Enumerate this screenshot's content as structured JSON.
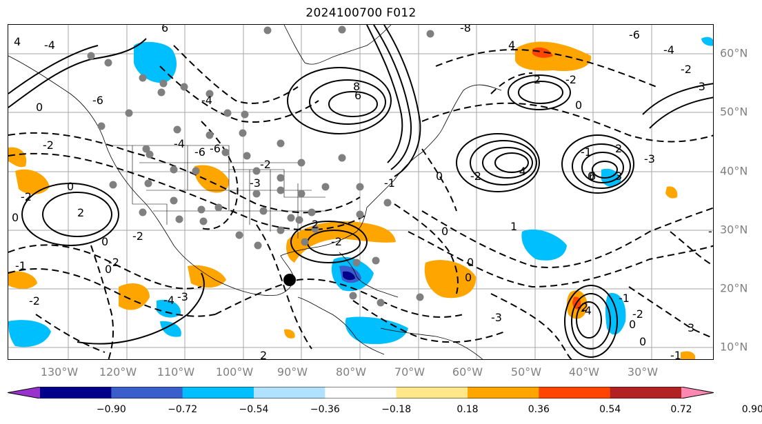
{
  "title": "2024100700 F012",
  "longitude_labels": [
    "130°W",
    "120°W",
    "110°W",
    "100°W",
    "90°W",
    "80°W",
    "70°W",
    "60°W",
    "50°W",
    "40°W",
    "30°W"
  ],
  "latitude_labels": [
    "60°N",
    "50°N",
    "40°N",
    "30°N",
    "20°N",
    "10°N"
  ],
  "colorbar": {
    "tick_labels": [
      "−0.90",
      "−0.72",
      "−0.54",
      "−0.36",
      "−0.18",
      "0.18",
      "0.36",
      "0.54",
      "0.72",
      "0.90"
    ],
    "colors": [
      "#9932cc",
      "#00008b",
      "#3a5fcd",
      "#00bfff",
      "#b0e2ff",
      "#ffffff",
      "#ffe78a",
      "#ffa500",
      "#ff4500",
      "#b22222",
      "#ff88b0"
    ]
  },
  "contour_labels": [
    "4",
    "-4",
    "6",
    "-8",
    "-6",
    "-4",
    "8",
    "-4",
    "4",
    "6",
    "-3",
    "2",
    "-2",
    "-6",
    "0",
    "0",
    "-2",
    "-2",
    "0",
    "2",
    "-4",
    "-6",
    "-6",
    "-3",
    "-2",
    "0",
    "-1",
    "0",
    "-2",
    "2",
    "-2",
    "0",
    "0",
    "0",
    "-2",
    "-2",
    "1",
    "-4",
    "-4",
    "0",
    "-2",
    "2",
    "-1",
    "-3",
    "0",
    "6",
    "3",
    "-2",
    "-1",
    "0",
    "-1",
    "3",
    "-1",
    "2",
    "-3",
    "-3",
    "-1",
    "0",
    "-4",
    "-2",
    "-2",
    "0"
  ],
  "markers": {
    "station_dot_color": "#808080",
    "storm_marker_color": "#000000"
  }
}
